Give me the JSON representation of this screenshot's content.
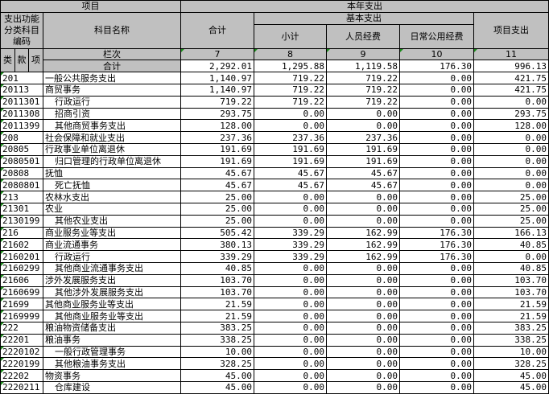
{
  "header": {
    "item": "项目",
    "year_expense": "本年支出",
    "code_label": "支出功能分类科目编码",
    "name_label": "科目名称",
    "total": "合计",
    "basic": "基本支出",
    "subtotal": "小计",
    "personnel": "人员经费",
    "public": "日常公用经费",
    "project": "项目支出",
    "lei": "类",
    "kuan": "款",
    "xiang": "项",
    "column_no_label": "栏次",
    "col_nums": [
      "7",
      "8",
      "9",
      "10",
      "11"
    ],
    "sum_label": "合计",
    "sum_values": [
      "2,292.01",
      "1,295.88",
      "1,119.58",
      "176.30",
      "996.13"
    ]
  },
  "rows": [
    {
      "code": "201",
      "name": "一般公共服务支出",
      "level": 0,
      "v": [
        "1,140.97",
        "719.22",
        "719.22",
        "0.00",
        "421.75"
      ]
    },
    {
      "code": "20113",
      "name": "商贸事务",
      "level": 0,
      "v": [
        "1,140.97",
        "719.22",
        "719.22",
        "0.00",
        "421.75"
      ]
    },
    {
      "code": "2011301",
      "name": "行政运行",
      "level": 1,
      "v": [
        "719.22",
        "719.22",
        "719.22",
        "0.00",
        "0.00"
      ]
    },
    {
      "code": "2011308",
      "name": "招商引资",
      "level": 1,
      "v": [
        "293.75",
        "0.00",
        "0.00",
        "0.00",
        "293.75"
      ]
    },
    {
      "code": "2011399",
      "name": "其他商贸事务支出",
      "level": 1,
      "v": [
        "128.00",
        "0.00",
        "0.00",
        "0.00",
        "128.00"
      ]
    },
    {
      "code": "208",
      "name": "社会保障和就业支出",
      "level": 0,
      "v": [
        "237.36",
        "237.36",
        "237.36",
        "0.00",
        "0.00"
      ]
    },
    {
      "code": "20805",
      "name": "行政事业单位离退休",
      "level": 0,
      "v": [
        "191.69",
        "191.69",
        "191.69",
        "0.00",
        "0.00"
      ]
    },
    {
      "code": "2080501",
      "name": "归口管理的行政单位离退休",
      "level": 1,
      "v": [
        "191.69",
        "191.69",
        "191.69",
        "0.00",
        "0.00"
      ]
    },
    {
      "code": "20808",
      "name": "抚恤",
      "level": 0,
      "v": [
        "45.67",
        "45.67",
        "45.67",
        "0.00",
        "0.00"
      ]
    },
    {
      "code": "2080801",
      "name": "死亡抚恤",
      "level": 1,
      "v": [
        "45.67",
        "45.67",
        "45.67",
        "0.00",
        "0.00"
      ]
    },
    {
      "code": "213",
      "name": "农林水支出",
      "level": 0,
      "v": [
        "25.00",
        "0.00",
        "0.00",
        "0.00",
        "25.00"
      ]
    },
    {
      "code": "21301",
      "name": "农业",
      "level": 0,
      "v": [
        "25.00",
        "0.00",
        "0.00",
        "0.00",
        "25.00"
      ]
    },
    {
      "code": "2130199",
      "name": "其他农业支出",
      "level": 1,
      "v": [
        "25.00",
        "0.00",
        "0.00",
        "0.00",
        "25.00"
      ]
    },
    {
      "code": "216",
      "name": "商业服务业等支出",
      "level": 0,
      "v": [
        "505.42",
        "339.29",
        "162.99",
        "176.30",
        "166.13"
      ]
    },
    {
      "code": "21602",
      "name": "商业流通事务",
      "level": 0,
      "v": [
        "380.13",
        "339.29",
        "162.99",
        "176.30",
        "40.85"
      ]
    },
    {
      "code": "2160201",
      "name": "行政运行",
      "level": 1,
      "v": [
        "339.29",
        "339.29",
        "162.99",
        "176.30",
        "0.00"
      ]
    },
    {
      "code": "2160299",
      "name": "其他商业流通事务支出",
      "level": 1,
      "v": [
        "40.85",
        "0.00",
        "0.00",
        "0.00",
        "40.85"
      ]
    },
    {
      "code": "21606",
      "name": "涉外发展服务支出",
      "level": 0,
      "v": [
        "103.70",
        "0.00",
        "0.00",
        "0.00",
        "103.70"
      ]
    },
    {
      "code": "2160699",
      "name": "其他涉外发展服务支出",
      "level": 1,
      "v": [
        "103.70",
        "0.00",
        "0.00",
        "0.00",
        "103.70"
      ]
    },
    {
      "code": "21699",
      "name": "其他商业服务业等支出",
      "level": 0,
      "v": [
        "21.59",
        "0.00",
        "0.00",
        "0.00",
        "21.59"
      ]
    },
    {
      "code": "2169999",
      "name": "其他商业服务业等支出",
      "level": 1,
      "v": [
        "21.59",
        "0.00",
        "0.00",
        "0.00",
        "21.59"
      ]
    },
    {
      "code": "222",
      "name": "粮油物资储备支出",
      "level": 0,
      "v": [
        "383.25",
        "0.00",
        "0.00",
        "0.00",
        "383.25"
      ]
    },
    {
      "code": "22201",
      "name": "粮油事务",
      "level": 0,
      "v": [
        "338.25",
        "0.00",
        "0.00",
        "0.00",
        "338.25"
      ]
    },
    {
      "code": "2220102",
      "name": "一般行政管理事务",
      "level": 1,
      "v": [
        "10.00",
        "0.00",
        "0.00",
        "0.00",
        "10.00"
      ]
    },
    {
      "code": "2220199",
      "name": "其他粮油事务支出",
      "level": 1,
      "v": [
        "328.25",
        "0.00",
        "0.00",
        "0.00",
        "328.25"
      ]
    },
    {
      "code": "22202",
      "name": "物资事务",
      "level": 0,
      "v": [
        "45.00",
        "0.00",
        "0.00",
        "0.00",
        "45.00"
      ]
    },
    {
      "code": "2220211",
      "name": "仓库建设",
      "level": 1,
      "v": [
        "45.00",
        "0.00",
        "0.00",
        "0.00",
        "45.00"
      ]
    }
  ]
}
